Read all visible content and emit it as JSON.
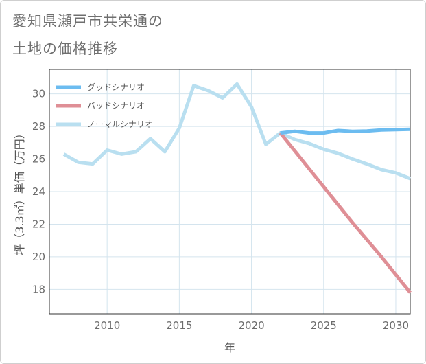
{
  "page": {
    "title_line1": "愛知県瀬戸市共栄通の",
    "title_line2": "土地の価格推移"
  },
  "chart_data": {
    "type": "line",
    "xlabel": "年",
    "ylabel": "坪（3.3㎡）単価（万円）",
    "xlim": [
      2006,
      2031
    ],
    "ylim": [
      16.5,
      31.5
    ],
    "xticks": [
      2010,
      2015,
      2020,
      2025,
      2030
    ],
    "yticks": [
      18,
      20,
      22,
      24,
      26,
      28,
      30
    ],
    "grid": true,
    "legend_position": "top-left",
    "series": [
      {
        "name": "グッドシナリオ",
        "color": "#6cbcf0",
        "x": [
          2022,
          2023,
          2024,
          2025,
          2026,
          2027,
          2028,
          2029,
          2030,
          2031
        ],
        "values": [
          27.6,
          27.7,
          27.6,
          27.6,
          27.75,
          27.7,
          27.72,
          27.78,
          27.8,
          27.82
        ]
      },
      {
        "name": "バッドシナリオ",
        "color": "#df8f96",
        "x": [
          2022,
          2023,
          2024,
          2025,
          2026,
          2027,
          2028,
          2029,
          2030,
          2031
        ],
        "values": [
          27.6,
          26.5,
          25.4,
          24.3,
          23.2,
          22.1,
          21.05,
          20.0,
          18.9,
          17.8
        ]
      },
      {
        "name": "ノーマルシナリオ",
        "color": "#b9dff0",
        "x": [
          2007,
          2008,
          2009,
          2010,
          2011,
          2012,
          2013,
          2014,
          2015,
          2016,
          2017,
          2018,
          2019,
          2020,
          2021,
          2022,
          2023,
          2024,
          2025,
          2026,
          2027,
          2028,
          2029,
          2030,
          2031
        ],
        "values": [
          26.3,
          25.8,
          25.7,
          26.55,
          26.3,
          26.45,
          27.25,
          26.45,
          27.9,
          30.5,
          30.2,
          29.75,
          30.6,
          29.2,
          26.9,
          27.6,
          27.2,
          26.95,
          26.6,
          26.35,
          26.0,
          25.7,
          25.35,
          25.15,
          24.8
        ]
      }
    ]
  }
}
